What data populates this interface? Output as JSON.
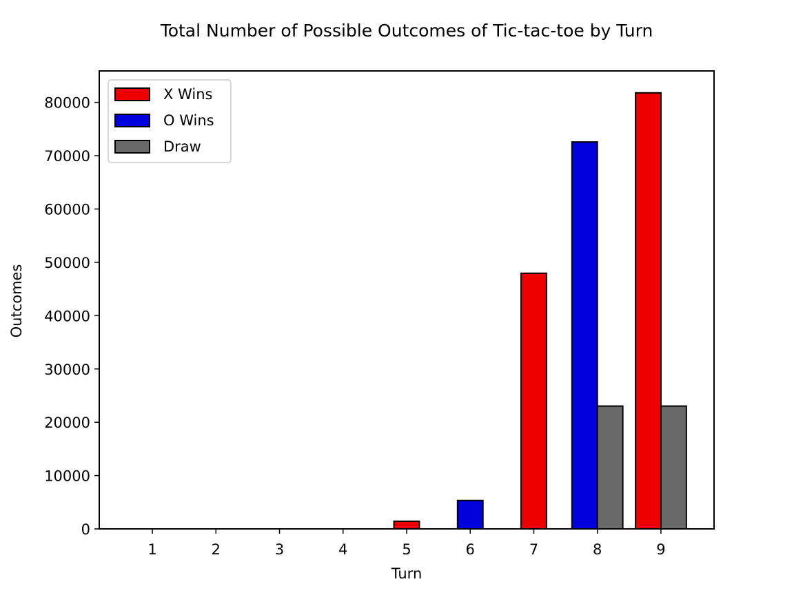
{
  "chart_data": {
    "type": "bar",
    "title": "Total Number of Possible Outcomes of Tic-tac-toe by Turn",
    "xlabel": "Turn",
    "ylabel": "Outcomes",
    "categories": [
      "1",
      "2",
      "3",
      "4",
      "5",
      "6",
      "7",
      "8",
      "9"
    ],
    "series": [
      {
        "name": "X Wins",
        "color": "#ee0000",
        "values": [
          0,
          0,
          0,
          0,
          1440,
          0,
          47952,
          0,
          81792
        ]
      },
      {
        "name": "O Wins",
        "color": "#0000dd",
        "values": [
          0,
          0,
          0,
          0,
          0,
          5328,
          0,
          72576,
          0
        ]
      },
      {
        "name": "Draw",
        "color": "#696969",
        "values": [
          0,
          0,
          0,
          0,
          0,
          0,
          0,
          23040,
          23040
        ]
      }
    ],
    "ylim": [
      0,
      85900
    ],
    "yticks": [
      0,
      10000,
      20000,
      30000,
      40000,
      50000,
      60000,
      70000,
      80000
    ],
    "xticks": [
      1,
      2,
      3,
      4,
      5,
      6,
      7,
      8,
      9
    ],
    "grid": false,
    "legend_position": "upper left"
  }
}
